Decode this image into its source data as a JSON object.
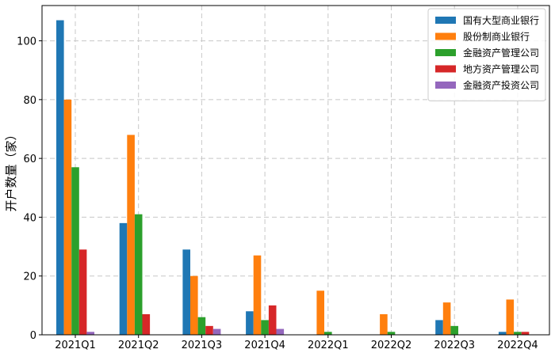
{
  "chart_data": {
    "type": "bar",
    "title": "",
    "xlabel": "",
    "ylabel": "开户数量（家）",
    "categories": [
      "2021Q1",
      "2021Q2",
      "2021Q3",
      "2021Q4",
      "2022Q1",
      "2022Q2",
      "2022Q3",
      "2022Q4"
    ],
    "ylim": [
      0,
      112
    ],
    "yticks": [
      0,
      20,
      40,
      60,
      80,
      100
    ],
    "grid": true,
    "grid_style": "dashed",
    "legend_position": "top-right",
    "series": [
      {
        "name": "国有大型商业银行",
        "color": "#1f77b4",
        "values": [
          107,
          38,
          29,
          8,
          0,
          0,
          5,
          1
        ]
      },
      {
        "name": "股份制商业银行",
        "color": "#ff7f0e",
        "values": [
          80,
          68,
          20,
          27,
          15,
          7,
          11,
          12
        ]
      },
      {
        "name": "金融资产管理公司",
        "color": "#2ca02c",
        "values": [
          57,
          41,
          6,
          5,
          1,
          1,
          3,
          1
        ]
      },
      {
        "name": "地方资产管理公司",
        "color": "#d62728",
        "values": [
          29,
          7,
          3,
          10,
          0,
          0,
          0,
          1
        ]
      },
      {
        "name": "金融资产投资公司",
        "color": "#9467bd",
        "values": [
          1,
          0,
          2,
          2,
          0,
          0,
          0,
          0
        ]
      }
    ]
  }
}
